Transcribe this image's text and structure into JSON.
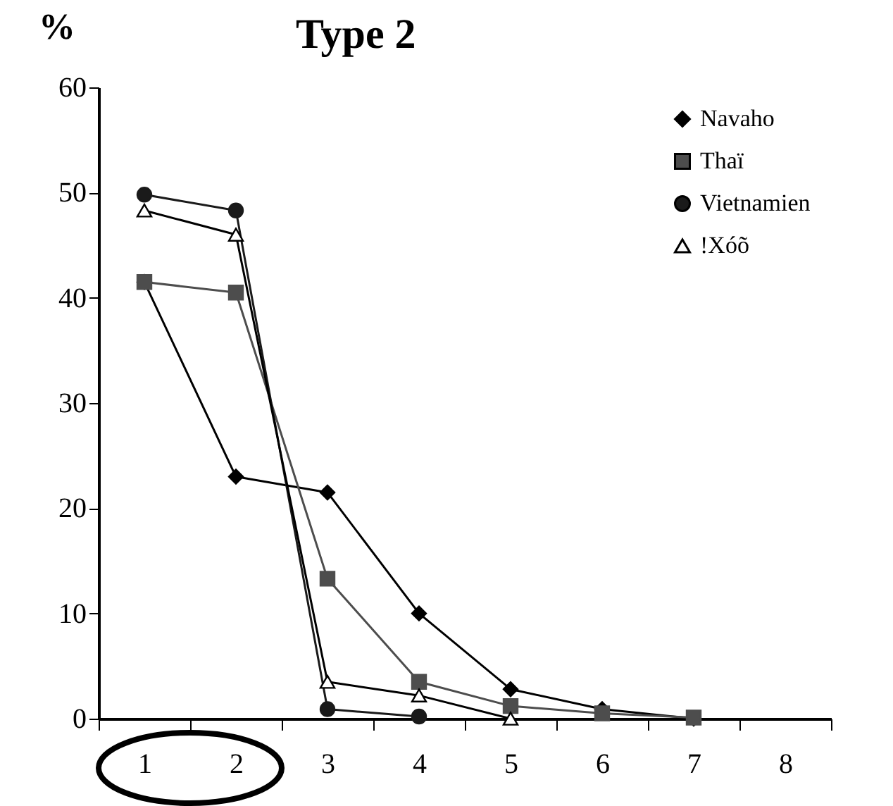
{
  "chart_data": {
    "type": "line",
    "title": "Type 2",
    "ylabel": "%",
    "categories": [
      "1",
      "2",
      "3",
      "4",
      "5",
      "6",
      "7",
      "8"
    ],
    "series": [
      {
        "name": "Navaho",
        "color": "#000000",
        "marker": "diamond",
        "values": [
          41.5,
          23,
          21.5,
          10,
          2.8,
          0.9,
          0,
          null
        ]
      },
      {
        "name": "Thaï",
        "color": "#4d4d4d",
        "marker": "square",
        "values": [
          41.5,
          40.5,
          13.3,
          3.5,
          1.2,
          0.5,
          0.1,
          null
        ]
      },
      {
        "name": "Vietnamien",
        "color": "#1a1a1a",
        "marker": "circle",
        "values": [
          49.8,
          48.3,
          0.9,
          0.2,
          null,
          null,
          null,
          null
        ]
      },
      {
        "name": "!Xóõ",
        "color": "#ffffff",
        "marker": "triangle",
        "values": [
          48.3,
          46,
          3.5,
          2.2,
          0,
          null,
          null,
          null
        ]
      }
    ],
    "ylim": [
      0,
      60
    ],
    "yticks": [
      0,
      10,
      20,
      30,
      40,
      50,
      60
    ],
    "grid": false,
    "legend": "top right",
    "line_style": "solid"
  }
}
